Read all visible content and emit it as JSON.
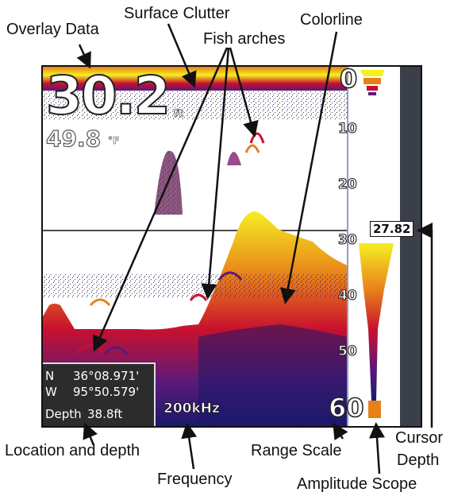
{
  "callouts": {
    "overlay_data": "Overlay Data",
    "surface_clutter": "Surface Clutter",
    "fish_arches": "Fish arches",
    "colorline": "Colorline",
    "location_depth": "Location and depth",
    "frequency": "Frequency",
    "range_scale": "Range Scale",
    "cursor_depth_line1": "Cursor",
    "cursor_depth_line2": "Depth",
    "amplitude_scope": "Amplitude Scope"
  },
  "overlay": {
    "depth": "30.2",
    "depth_unit": "ft",
    "temperature": "49.8",
    "temperature_unit": "°F"
  },
  "range_scale": [
    "0",
    "10",
    "20",
    "30",
    "40",
    "50",
    "60"
  ],
  "location": {
    "lat_label": "N",
    "lat": "36°08.971'",
    "lon_label": "W",
    "lon": "95°50.579'",
    "depth_label": "Depth",
    "depth_value": "38.8ft"
  },
  "frequency": "200kHz",
  "cursor_depth": "27.82",
  "colors": {
    "sonar_yellow": "#f5ef22",
    "sonar_orange": "#e8801a",
    "sonar_red": "#c8102e",
    "sonar_purple": "#5a1a7a",
    "sonar_blue": "#1a1a6a",
    "side_bar": "#3a3f4a"
  }
}
